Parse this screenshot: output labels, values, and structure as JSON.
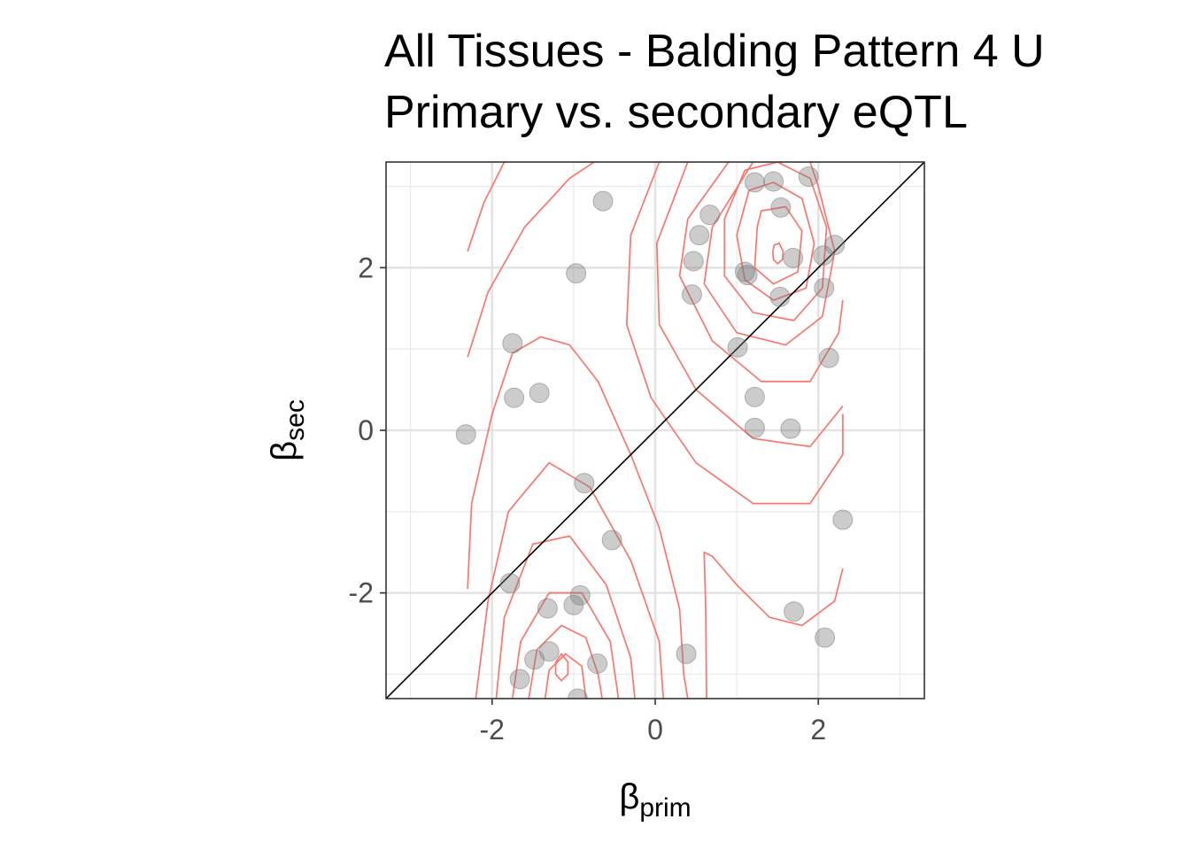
{
  "chart_data": {
    "type": "scatter",
    "title": "All Tissues - Balding Pattern 4 U",
    "subtitle": "Primary vs. secondary eQTL",
    "xlabel": {
      "symbol": "β",
      "subscript": "prim"
    },
    "ylabel": {
      "symbol": "β",
      "subscript": "sec"
    },
    "xlim": [
      -3.3,
      3.3
    ],
    "ylim": [
      -3.3,
      3.3
    ],
    "x_ticks": [
      -2,
      0,
      2
    ],
    "y_ticks": [
      -2,
      0,
      2
    ],
    "x_tick_labels": [
      "-2",
      "0",
      "2"
    ],
    "y_tick_labels": [
      "-2",
      "0",
      "2"
    ],
    "grid": true,
    "reference_line": {
      "type": "identity",
      "slope": 1,
      "intercept": 0,
      "color": "#000000"
    },
    "point_color": "#7f7f7f",
    "point_opacity": 0.4,
    "contour_color": "#f8766d",
    "points": [
      {
        "x": -2.32,
        "y": -0.05
      },
      {
        "x": -1.75,
        "y": 1.07
      },
      {
        "x": -1.73,
        "y": 0.4
      },
      {
        "x": -1.42,
        "y": 0.46
      },
      {
        "x": -0.97,
        "y": 1.93
      },
      {
        "x": -0.64,
        "y": 2.82
      },
      {
        "x": -0.87,
        "y": -0.65
      },
      {
        "x": -0.53,
        "y": -1.35
      },
      {
        "x": -1.78,
        "y": -1.88
      },
      {
        "x": -1.32,
        "y": -2.19
      },
      {
        "x": -1.0,
        "y": -2.15
      },
      {
        "x": -0.92,
        "y": -2.03
      },
      {
        "x": -1.3,
        "y": -2.72
      },
      {
        "x": -1.48,
        "y": -2.82
      },
      {
        "x": -0.71,
        "y": -2.87
      },
      {
        "x": -1.66,
        "y": -3.06
      },
      {
        "x": -0.95,
        "y": -3.3
      },
      {
        "x": 0.38,
        "y": -2.75
      },
      {
        "x": 0.47,
        "y": 2.08
      },
      {
        "x": 0.45,
        "y": 1.67
      },
      {
        "x": 0.54,
        "y": 2.4
      },
      {
        "x": 0.67,
        "y": 2.65
      },
      {
        "x": 1.1,
        "y": 1.95
      },
      {
        "x": 1.13,
        "y": 1.91
      },
      {
        "x": 1.22,
        "y": 3.05
      },
      {
        "x": 1.45,
        "y": 3.06
      },
      {
        "x": 1.54,
        "y": 2.74
      },
      {
        "x": 1.88,
        "y": 3.12
      },
      {
        "x": 1.69,
        "y": 2.12
      },
      {
        "x": 1.53,
        "y": 1.64
      },
      {
        "x": 2.06,
        "y": 2.15
      },
      {
        "x": 2.2,
        "y": 2.28
      },
      {
        "x": 2.07,
        "y": 1.75
      },
      {
        "x": 1.01,
        "y": 1.02
      },
      {
        "x": 1.22,
        "y": 0.41
      },
      {
        "x": 1.22,
        "y": 0.03
      },
      {
        "x": 1.66,
        "y": 0.02
      },
      {
        "x": 2.13,
        "y": 0.89
      },
      {
        "x": 2.3,
        "y": -1.1
      },
      {
        "x": 1.7,
        "y": -2.23
      },
      {
        "x": 2.08,
        "y": -2.55
      }
    ],
    "contour_paths": [
      [
        [
          0.05,
          3.3
        ],
        [
          -0.3,
          2.4
        ],
        [
          -0.35,
          1.3
        ],
        [
          -0.05,
          0.4
        ],
        [
          0.5,
          -0.4
        ],
        [
          1.2,
          -0.9
        ],
        [
          1.9,
          -0.9
        ],
        [
          2.3,
          -0.3
        ],
        [
          2.3,
          0.2
        ]
      ],
      [
        [
          0.4,
          3.3
        ],
        [
          0.02,
          2.3
        ],
        [
          0.05,
          1.3
        ],
        [
          0.5,
          0.5
        ],
        [
          1.2,
          -0.1
        ],
        [
          1.9,
          -0.2
        ],
        [
          2.3,
          0.3
        ]
      ],
      [
        [
          0.9,
          3.3
        ],
        [
          0.4,
          2.6
        ],
        [
          0.3,
          1.9
        ],
        [
          0.7,
          1.1
        ],
        [
          1.3,
          0.6
        ],
        [
          1.9,
          0.6
        ],
        [
          2.25,
          1.2
        ],
        [
          2.3,
          1.6
        ]
      ],
      [
        [
          1.2,
          3.3
        ],
        [
          0.7,
          2.5
        ],
        [
          0.6,
          1.8
        ],
        [
          1.0,
          1.2
        ],
        [
          1.6,
          1.05
        ],
        [
          2.05,
          1.4
        ],
        [
          2.2,
          2.2
        ],
        [
          2.0,
          3.0
        ],
        [
          1.9,
          3.3
        ]
      ],
      [
        [
          1.1,
          3.2
        ],
        [
          0.85,
          2.6
        ],
        [
          0.85,
          1.9
        ],
        [
          1.2,
          1.45
        ],
        [
          1.7,
          1.35
        ],
        [
          2.05,
          1.75
        ],
        [
          2.1,
          2.5
        ],
        [
          1.9,
          3.1
        ],
        [
          1.5,
          3.3
        ],
        [
          1.1,
          3.2
        ]
      ],
      [
        [
          1.15,
          2.95
        ],
        [
          1.0,
          2.4
        ],
        [
          1.1,
          1.85
        ],
        [
          1.45,
          1.6
        ],
        [
          1.85,
          1.75
        ],
        [
          1.95,
          2.3
        ],
        [
          1.8,
          2.85
        ],
        [
          1.45,
          3.05
        ],
        [
          1.15,
          2.95
        ]
      ],
      [
        [
          1.25,
          2.5
        ],
        [
          1.22,
          2.0
        ],
        [
          1.45,
          1.8
        ],
        [
          1.75,
          1.95
        ],
        [
          1.8,
          2.45
        ],
        [
          1.6,
          2.75
        ],
        [
          1.3,
          2.7
        ],
        [
          1.25,
          2.5
        ]
      ],
      [
        [
          1.44,
          2.2
        ],
        [
          1.45,
          2.1
        ],
        [
          1.5,
          2.05
        ],
        [
          1.56,
          2.1
        ],
        [
          1.57,
          2.2
        ],
        [
          1.52,
          2.3
        ],
        [
          1.46,
          2.28
        ],
        [
          1.44,
          2.2
        ]
      ],
      [
        [
          -2.3,
          2.2
        ],
        [
          -2.1,
          2.8
        ],
        [
          -1.85,
          3.3
        ]
      ],
      [
        [
          -2.3,
          0.9
        ],
        [
          -2.05,
          1.7
        ],
        [
          -1.6,
          2.5
        ],
        [
          -1.05,
          3.1
        ],
        [
          -0.75,
          3.3
        ]
      ],
      [
        [
          -2.3,
          -1.95
        ],
        [
          -2.25,
          -0.9
        ],
        [
          -2.0,
          0.2
        ],
        [
          -1.75,
          0.95
        ],
        [
          -1.4,
          1.15
        ],
        [
          -1.05,
          1.05
        ],
        [
          -0.7,
          0.6
        ],
        [
          -0.3,
          -0.3
        ],
        [
          0.05,
          -1.2
        ],
        [
          0.3,
          -2.2
        ],
        [
          0.35,
          -3.0
        ],
        [
          0.4,
          -3.3
        ]
      ],
      [
        [
          -2.2,
          -3.3
        ],
        [
          -2.05,
          -2.1
        ],
        [
          -1.8,
          -1.0
        ],
        [
          -1.3,
          -0.4
        ],
        [
          -0.8,
          -0.7
        ],
        [
          -0.3,
          -1.6
        ],
        [
          0.05,
          -2.6
        ],
        [
          0.1,
          -3.3
        ]
      ],
      [
        [
          -1.95,
          -3.3
        ],
        [
          -1.85,
          -2.3
        ],
        [
          -1.5,
          -1.4
        ],
        [
          -1.05,
          -1.3
        ],
        [
          -0.6,
          -1.9
        ],
        [
          -0.3,
          -2.8
        ],
        [
          -0.25,
          -3.3
        ]
      ],
      [
        [
          -1.75,
          -3.3
        ],
        [
          -1.65,
          -2.6
        ],
        [
          -1.3,
          -2.0
        ],
        [
          -0.9,
          -2.0
        ],
        [
          -0.55,
          -2.6
        ],
        [
          -0.45,
          -3.3
        ]
      ],
      [
        [
          -1.55,
          -3.3
        ],
        [
          -1.45,
          -2.7
        ],
        [
          -1.15,
          -2.4
        ],
        [
          -0.85,
          -2.55
        ],
        [
          -0.7,
          -3.0
        ],
        [
          -0.65,
          -3.3
        ]
      ],
      [
        [
          -1.35,
          -3.3
        ],
        [
          -1.3,
          -2.95
        ],
        [
          -1.1,
          -2.75
        ],
        [
          -0.9,
          -2.9
        ],
        [
          -0.85,
          -3.3
        ]
      ],
      [
        [
          -1.22,
          -2.85
        ],
        [
          -1.15,
          -2.75
        ],
        [
          -1.07,
          -2.85
        ],
        [
          -1.07,
          -3.0
        ],
        [
          -1.15,
          -3.08
        ],
        [
          -1.22,
          -3.0
        ],
        [
          -1.22,
          -2.85
        ]
      ],
      [
        [
          0.63,
          -3.3
        ],
        [
          0.62,
          -2.2
        ],
        [
          0.6,
          -1.5
        ],
        [
          0.7,
          -1.55
        ],
        [
          1.0,
          -1.9
        ],
        [
          1.4,
          -2.3
        ],
        [
          1.8,
          -2.4
        ],
        [
          2.2,
          -2.1
        ],
        [
          2.3,
          -1.7
        ]
      ]
    ]
  }
}
